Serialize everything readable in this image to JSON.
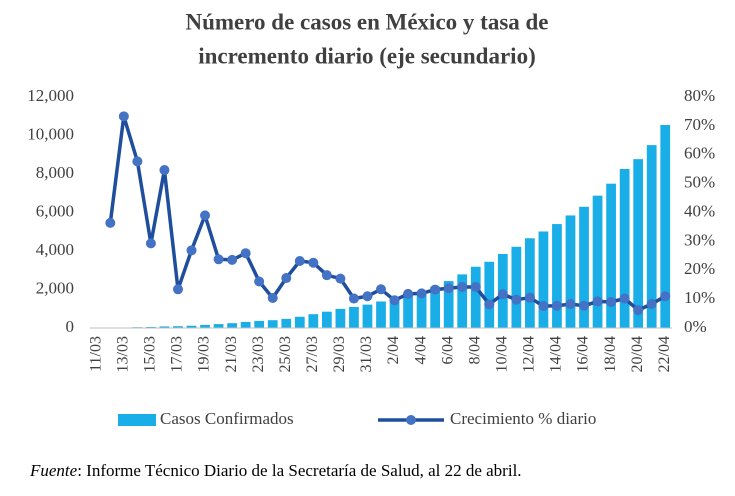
{
  "chart_data": {
    "type": "bar_line",
    "title": [
      "Número de casos en México y tasa de",
      "incremento diario (eje secundario)"
    ],
    "footnote": {
      "label": "Fuente",
      "text": ": Informe Técnico Diario de la Secretaría de Salud, al 22 de abril."
    },
    "categories": [
      "11/03",
      null,
      "13/03",
      null,
      "15/03",
      null,
      "17/03",
      null,
      "19/03",
      null,
      "21/03",
      null,
      "23/03",
      null,
      "25/03",
      null,
      "27/03",
      null,
      "29/03",
      null,
      "31/03",
      null,
      "2/04",
      null,
      "4/04",
      null,
      "6/04",
      null,
      "8/04",
      null,
      "10/04",
      null,
      "12/04",
      null,
      "14/04",
      null,
      "16/04",
      null,
      "18/04",
      null,
      "20/04",
      null,
      "22/04"
    ],
    "series": [
      {
        "name": "Casos Confirmados",
        "color": "#1aaee8",
        "type": "bar",
        "values": [
          11,
          15,
          26,
          41,
          53,
          82,
          93,
          118,
          164,
          203,
          251,
          316,
          367,
          405,
          475,
          585,
          717,
          848,
          993,
          1094,
          1215,
          1378,
          1510,
          1688,
          1890,
          2143,
          2439,
          2785,
          3181,
          3441,
          3844,
          4219,
          4661,
          5014,
          5399,
          5847,
          6297,
          6875,
          7497,
          8261,
          8772,
          9501,
          10544
        ]
      },
      {
        "name": "Crecimiento % diario",
        "color": "#1f4e9c",
        "marker_color": "#4472c4",
        "type": "line",
        "axis": "y2",
        "values": [
          null,
          36.4,
          73.3,
          57.7,
          29.3,
          54.7,
          13.4,
          26.9,
          39,
          23.8,
          23.6,
          25.9,
          16.1,
          10.4,
          17.3,
          23.2,
          22.6,
          18.3,
          17.1,
          10.2,
          11,
          13.4,
          9.6,
          11.8,
          12,
          13.3,
          13.8,
          14.2,
          14.2,
          8.2,
          11.7,
          9.8,
          10.5,
          7.6,
          7.7,
          8.3,
          7.7,
          9.2,
          9,
          10.2,
          6.2,
          8.3,
          11
        ]
      }
    ],
    "ylim": [
      0,
      12000
    ],
    "yticks": [
      0,
      {
        "value": 2000,
        "label": "2,000"
      },
      {
        "value": 4000,
        "label": "4,000"
      },
      {
        "value": 6000,
        "label": "6,000"
      },
      {
        "value": 8000,
        "label": "8,000"
      },
      {
        "value": 10000,
        "label": "10,000"
      },
      {
        "value": 12000,
        "label": "12,000"
      }
    ],
    "y2lim": [
      0,
      80
    ],
    "y2ticks": [
      {
        "value": 0,
        "label": "0%"
      },
      {
        "value": 10,
        "label": "10%"
      },
      {
        "value": 20,
        "label": "20%"
      },
      {
        "value": 30,
        "label": "30%"
      },
      {
        "value": 40,
        "label": "40%"
      },
      {
        "value": 50,
        "label": "50%"
      },
      {
        "value": 60,
        "label": "60%"
      },
      {
        "value": 70,
        "label": "70%"
      },
      {
        "value": 80,
        "label": "80%"
      }
    ],
    "legend": "bottom"
  }
}
